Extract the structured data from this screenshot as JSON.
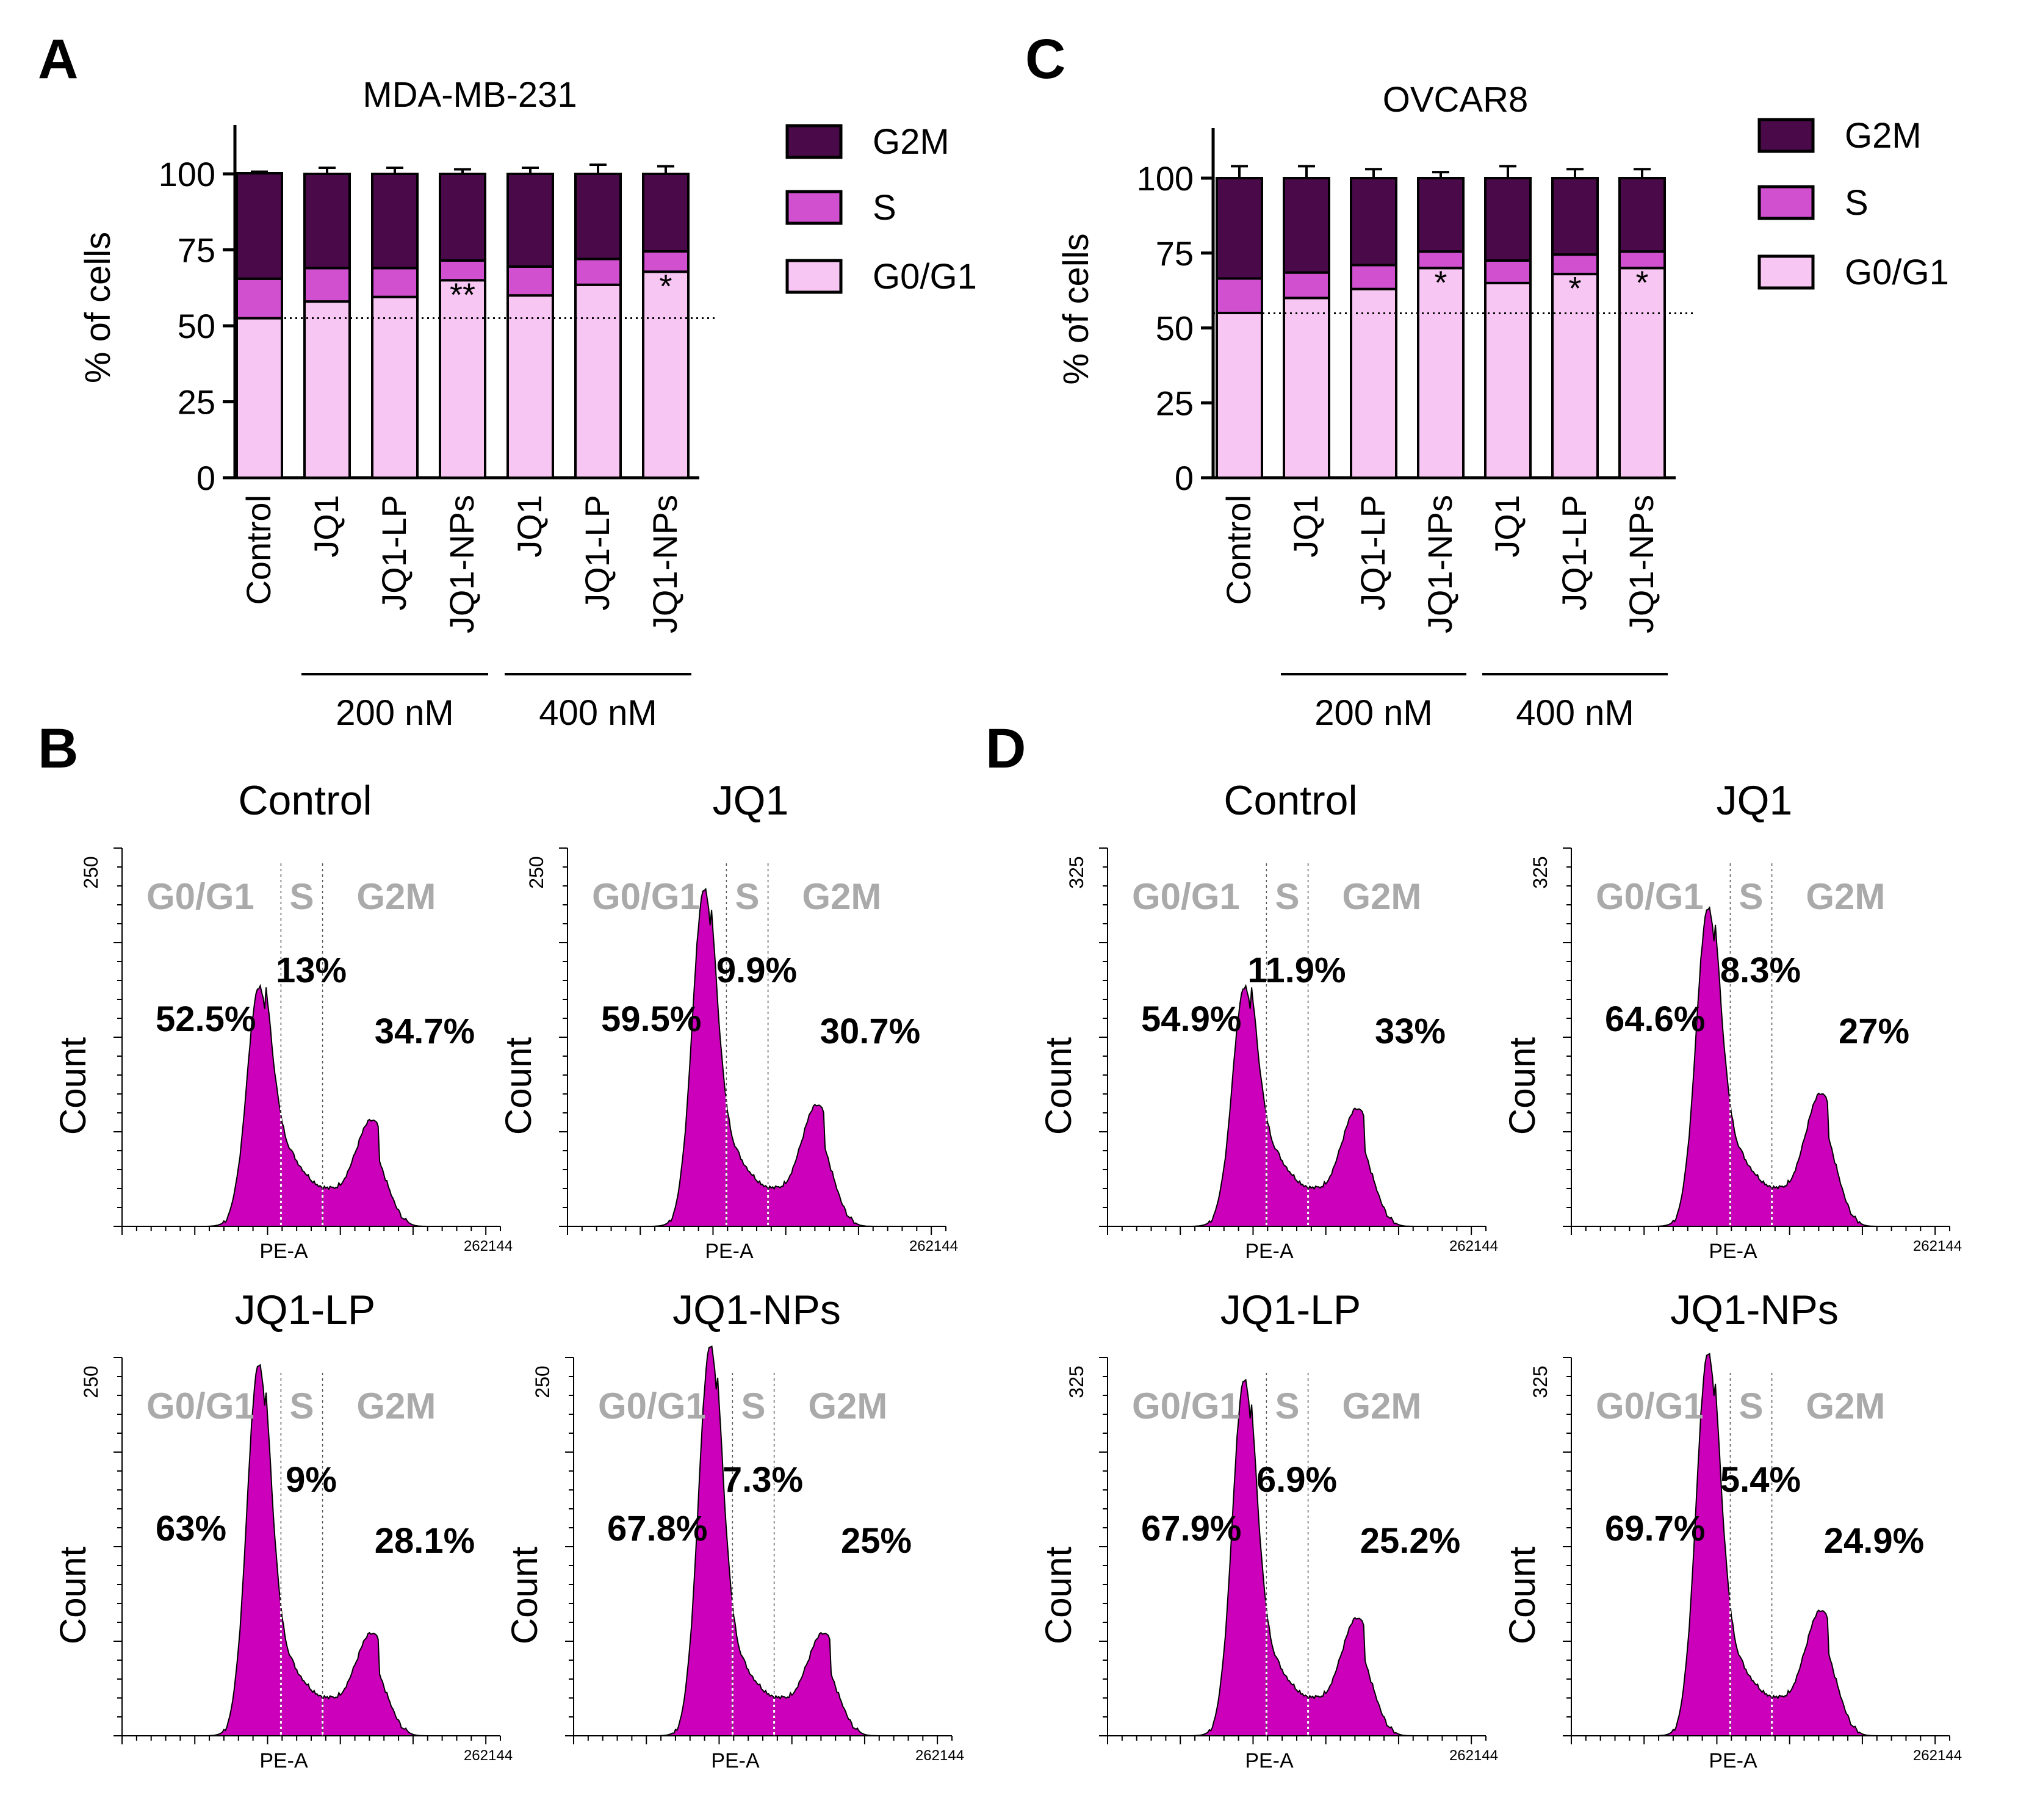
{
  "chart_data": [
    {
      "panel": "A",
      "type": "bar",
      "stacked": true,
      "title": "MDA-MB-231",
      "xlabel": "",
      "ylabel": "% of cells",
      "ylim": [
        0,
        115
      ],
      "yticks": [
        "0",
        "25",
        "50",
        "75",
        "100"
      ],
      "categories": [
        "Control",
        "JQ1",
        "JQ1-LP",
        "JQ1-NPs",
        "JQ1",
        "JQ1-LP",
        "JQ1-NPs"
      ],
      "series": [
        {
          "name": "G0/G1",
          "color": "#f7c6f2",
          "values": [
            52.5,
            58,
            59.5,
            65,
            60,
            63.5,
            67.8
          ],
          "errors": [
            0.5,
            2.5,
            2,
            2,
            3,
            3.5,
            3
          ]
        },
        {
          "name": "S",
          "color": "#d050d0",
          "values": [
            13,
            11,
            9.5,
            6.5,
            9.5,
            8.5,
            6.7
          ],
          "errors": [
            0.5,
            1,
            1,
            1,
            1,
            1,
            1.5
          ]
        },
        {
          "name": "G2M",
          "color": "#4a0a4a",
          "values": [
            34.7,
            31,
            31,
            28.5,
            30.5,
            28,
            25.5
          ],
          "errors": [
            0.5,
            2,
            2,
            1.5,
            2,
            3,
            2.5
          ]
        }
      ],
      "significance": [
        "",
        "",
        "",
        "**",
        "",
        "",
        "*"
      ],
      "reference_line": 52.5,
      "groups": [
        {
          "label": "200 nM",
          "from": 1,
          "to": 3
        },
        {
          "label": "400 nM",
          "from": 4,
          "to": 6
        }
      ],
      "legend": [
        "G2M",
        "S",
        "G0/G1"
      ]
    },
    {
      "panel": "C",
      "type": "bar",
      "stacked": true,
      "title": "OVCAR8",
      "xlabel": "",
      "ylabel": "% of cells",
      "ylim": [
        0,
        115
      ],
      "yticks": [
        "0",
        "25",
        "50",
        "75",
        "100"
      ],
      "categories": [
        "Control",
        "JQ1",
        "JQ1-LP",
        "JQ1-NPs",
        "JQ1",
        "JQ1-LP",
        "JQ1-NPs"
      ],
      "series": [
        {
          "name": "G0/G1",
          "color": "#f7c6f2",
          "values": [
            55,
            60,
            63,
            70,
            65,
            68,
            70
          ],
          "errors": [
            2,
            3,
            3,
            2,
            5,
            3,
            2
          ]
        },
        {
          "name": "S",
          "color": "#d050d0",
          "values": [
            11.5,
            8.5,
            8,
            5.5,
            7.5,
            6.5,
            5.5
          ],
          "errors": [
            1,
            1,
            1,
            1,
            2,
            1.5,
            1.5
          ]
        },
        {
          "name": "G2M",
          "color": "#4a0a4a",
          "values": [
            33.5,
            31.5,
            29,
            24.5,
            27.5,
            25.5,
            24.5
          ],
          "errors": [
            4,
            4,
            3,
            2,
            4,
            3,
            3
          ]
        }
      ],
      "significance": [
        "",
        "",
        "",
        "*",
        "",
        "*",
        "*"
      ],
      "reference_line": 54.9,
      "groups": [
        {
          "label": "200 nM",
          "from": 1,
          "to": 3
        },
        {
          "label": "400 nM",
          "from": 4,
          "to": 6
        }
      ],
      "legend": [
        "G2M",
        "S",
        "G0/G1"
      ]
    },
    {
      "panel": "B",
      "type": "area",
      "cell_line": "MDA-MB-231",
      "xlabel": "PE-A",
      "ylabel": "Count",
      "x_max_label": "262144",
      "y_max_label": "250",
      "phase_labels": [
        "G0/G1",
        "S",
        "G2M"
      ],
      "histograms": [
        {
          "title": "Control",
          "g1_pct": "52.5%",
          "s_pct": "13%",
          "g2m_pct": "34.7%",
          "g1_peak": 0.52,
          "g2_peak": 0.19
        },
        {
          "title": "JQ1",
          "g1_pct": "59.5%",
          "s_pct": "9.9%",
          "g2m_pct": "30.7%",
          "g1_peak": 0.78,
          "g2_peak": 0.23
        },
        {
          "title": "JQ1-LP",
          "g1_pct": "63%",
          "s_pct": "9%",
          "g2m_pct": "28.1%",
          "g1_peak": 0.87,
          "g2_peak": 0.18
        },
        {
          "title": "JQ1-NPs",
          "g1_pct": "67.8%",
          "s_pct": "7.3%",
          "g2m_pct": "25%",
          "g1_peak": 0.92,
          "g2_peak": 0.18
        }
      ]
    },
    {
      "panel": "D",
      "type": "area",
      "cell_line": "OVCAR8",
      "xlabel": "PE-A",
      "ylabel": "Count",
      "x_max_label": "262144",
      "y_max_label": "325",
      "phase_labels": [
        "G0/G1",
        "S",
        "G2M"
      ],
      "histograms": [
        {
          "title": "Control",
          "g1_pct": "54.9%",
          "s_pct": "11.9%",
          "g2m_pct": "33%",
          "g1_peak": 0.52,
          "g2_peak": 0.22
        },
        {
          "title": "JQ1",
          "g1_pct": "64.6%",
          "s_pct": "8.3%",
          "g2m_pct": "27%",
          "g1_peak": 0.73,
          "g2_peak": 0.26
        },
        {
          "title": "JQ1-LP",
          "g1_pct": "67.9%",
          "s_pct": "6.9%",
          "g2m_pct": "25.2%",
          "g1_peak": 0.83,
          "g2_peak": 0.22
        },
        {
          "title": "JQ1-NPs",
          "g1_pct": "69.7%",
          "s_pct": "5.4%",
          "g2m_pct": "24.9%",
          "g1_peak": 0.9,
          "g2_peak": 0.24
        }
      ]
    }
  ]
}
